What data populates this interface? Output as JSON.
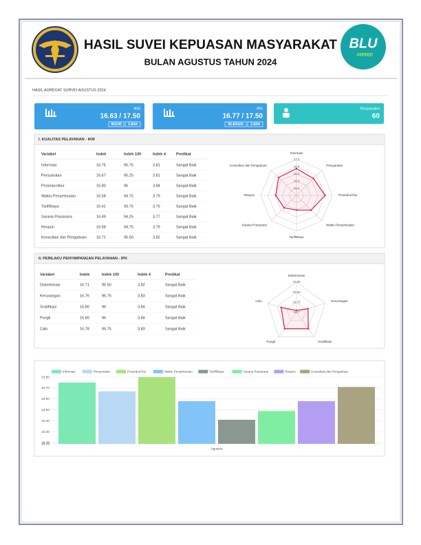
{
  "header": {
    "title": "HASIL SUVEI KEPUASAN MASYARAKAT",
    "subtitle": "BULAN AGUSTUS TAHUN 2024"
  },
  "section_title": "HASIL AGREGAT SURVEI AGUSTUS 2024",
  "cards": [
    {
      "label": "IKM",
      "value": "16.63 / 17.50",
      "badges": [
        "95/100",
        "3.83/4"
      ]
    },
    {
      "label": "IPK",
      "value": "16.77 / 17.50",
      "badges": [
        "95.83/100",
        "3.83/4"
      ]
    },
    {
      "label": "Responden",
      "value": "60"
    }
  ],
  "ikm_table": {
    "title": "I. KUALITAS PELAYANAN - IKM",
    "headers": [
      "Variabel",
      "Indek",
      "Indek 100",
      "Indek 4",
      "Predikat"
    ],
    "rows": [
      [
        "Informasi",
        "16.75",
        "95.75",
        "3.81",
        "Sangat Baik"
      ],
      [
        "Persyaratan",
        "16.67",
        "95.25",
        "3.81",
        "Sangat Baik"
      ],
      [
        "Prosedur/Alur",
        "16.80",
        "96",
        "3.84",
        "Sangat Baik"
      ],
      [
        "Waktu Penyelesaian",
        "16.58",
        "94.75",
        "3.79",
        "Sangat Baik"
      ],
      [
        "Tarif/Biaya",
        "16.41",
        "93.75",
        "3.75",
        "Sangat Baik"
      ],
      [
        "Sarana Prasarana",
        "16.49",
        "94.25",
        "3.77",
        "Sangat Baik"
      ],
      [
        "Respon",
        "16.58",
        "94.75",
        "3.79",
        "Sangat Baik"
      ],
      [
        "Konsultasi dan Pengaduan",
        "16.71",
        "95.50",
        "3.82",
        "Sangat Baik"
      ]
    ]
  },
  "ipk_table": {
    "title": "II. PERILAKU PENYIMPANGAN PELAYANAN - IPK",
    "headers": [
      "Variabel",
      "Indek",
      "Indek 100",
      "Indek 4",
      "Predikat"
    ],
    "rows": [
      [
        "Diskriminasi",
        "16.71",
        "95.50",
        "3.82",
        "Sangat Baik"
      ],
      [
        "Kecurangan",
        "16.76",
        "95.75",
        "3.83",
        "Sangat Baik"
      ],
      [
        "Gratifikasi",
        "16.80",
        "96",
        "3.84",
        "Sangat Baik"
      ],
      [
        "Pungli",
        "16.80",
        "96",
        "3.84",
        "Sangat Baik"
      ],
      [
        "Calo",
        "16.78",
        "95.75",
        "3.83",
        "Sangat Baik"
      ]
    ]
  },
  "chart_data": [
    {
      "type": "radar",
      "categories": [
        "Informasi",
        "Persyaratan",
        "Prosedur/Alur",
        "Waktu Penyelesaian",
        "Tarif/Biaya",
        "Sarana Prasarana",
        "Respon",
        "Konsultasi dan Pengaduan"
      ],
      "values": [
        16.75,
        16.67,
        16.8,
        16.58,
        16.41,
        16.49,
        16.58,
        16.71
      ],
      "color": "#d6204a",
      "rlim": [
        16.0,
        17.0
      ],
      "rticks": [
        {
          "value": 17,
          "label": "17.0"
        },
        16.8,
        16.6,
        16.4,
        16.2
      ]
    },
    {
      "type": "radar",
      "categories": [
        "Diskriminasi",
        "Kecurangan",
        "Gratifikasi",
        "Pungli",
        "Calo"
      ],
      "values": [
        16.71,
        16.76,
        16.8,
        16.8,
        16.78
      ],
      "color": "#d6204a",
      "rlim": [
        16.7,
        16.85
      ],
      "rticks": [
        16.85,
        {
          "value": 16.8,
          "label": "16.80"
        },
        16.75,
        16.7
      ]
    },
    {
      "type": "bar",
      "categories": [
        "Agustus"
      ],
      "series": [
        {
          "name": "Informasi",
          "color": "#7ce8b4",
          "values": [
            16.75
          ]
        },
        {
          "name": "Persyaratan",
          "color": "#b8d8f4",
          "values": [
            16.67
          ]
        },
        {
          "name": "Prosedur/Alur",
          "color": "#a9e27c",
          "values": [
            16.8
          ]
        },
        {
          "name": "Waktu Penyelesaian",
          "color": "#82c4f8",
          "values": [
            16.58
          ]
        },
        {
          "name": "Tarif/Biaya",
          "color": "#8a9890",
          "values": [
            16.41
          ]
        },
        {
          "name": "Sarana Prasarana",
          "color": "#80eea2",
          "values": [
            16.49
          ]
        },
        {
          "name": "Respon",
          "color": "#b49ef4",
          "values": [
            16.58
          ]
        },
        {
          "name": "Konsultasi dan Pengaduan",
          "color": "#a9a382",
          "values": [
            16.71
          ]
        }
      ],
      "ylim": [
        16.19,
        16.8
      ],
      "yticks": [
        {
          "value": 16.8,
          "label": "16.80"
        },
        {
          "value": 16.7,
          "label": "16.70"
        },
        {
          "value": 16.6,
          "label": "16.60"
        },
        {
          "value": 16.5,
          "label": "16.50"
        },
        {
          "value": 16.4,
          "label": "16.40"
        },
        {
          "value": 16.3,
          "label": "16.30"
        },
        {
          "value": 16.2,
          "label": "16.20"
        },
        16.19
      ],
      "grid": true
    }
  ]
}
